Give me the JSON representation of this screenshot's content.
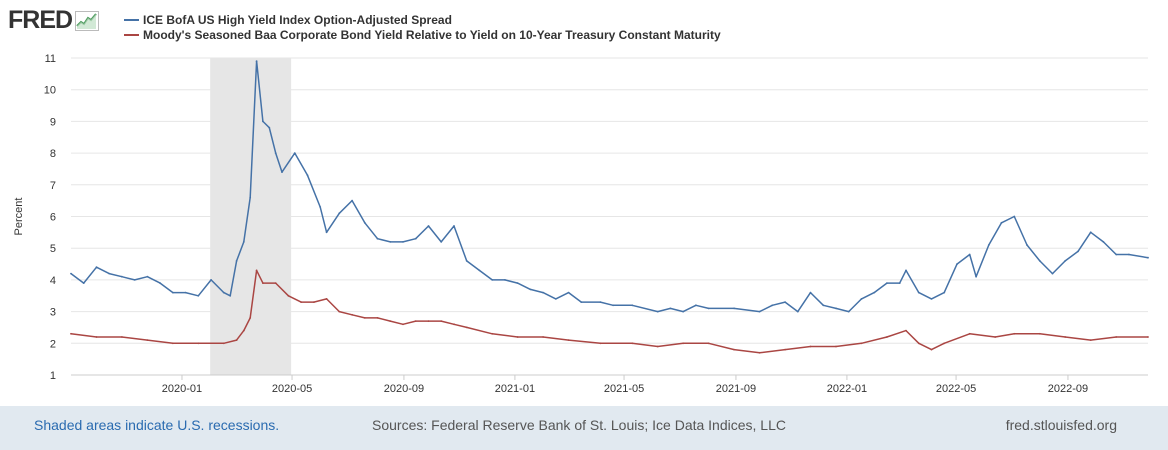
{
  "header": {
    "logo_text": "FRED",
    "logo_icon": "line-chart-icon"
  },
  "colors": {
    "series1": "#4572a7",
    "series2": "#aa4643",
    "recession": "#e6e6e6",
    "grid": "#e6e6e6",
    "link": "#2a6bb0"
  },
  "footer": {
    "recession_note": "Shaded areas indicate U.S. recessions.",
    "sources": "Sources: Federal Reserve Bank of St. Louis; Ice Data Indices, LLC",
    "site": "fred.stlouisfed.org"
  },
  "chart_data": {
    "type": "line",
    "ylabel": "Percent",
    "ylim": [
      1,
      11
    ],
    "yticks": [
      1,
      2,
      3,
      4,
      5,
      6,
      7,
      8,
      9,
      10,
      11
    ],
    "xlim": [
      "2019-09-01",
      "2022-11-28"
    ],
    "xticks": [
      "2020-01",
      "2020-05",
      "2020-09",
      "2021-01",
      "2021-05",
      "2021-09",
      "2022-01",
      "2022-05",
      "2022-09"
    ],
    "grid": "horizontal",
    "legend_position": "top-left",
    "recessions": [
      {
        "start": "2020-02-01",
        "end": "2020-04-30"
      }
    ],
    "series": [
      {
        "name": "ICE BofA US High Yield Index Option-Adjusted Spread",
        "points": [
          [
            "2019-09-01",
            4.2
          ],
          [
            "2019-09-15",
            3.9
          ],
          [
            "2019-09-29",
            4.4
          ],
          [
            "2019-10-13",
            4.2
          ],
          [
            "2019-10-27",
            4.1
          ],
          [
            "2019-11-10",
            4.0
          ],
          [
            "2019-11-24",
            4.1
          ],
          [
            "2019-12-08",
            3.9
          ],
          [
            "2019-12-22",
            3.6
          ],
          [
            "2020-01-05",
            3.6
          ],
          [
            "2020-01-19",
            3.5
          ],
          [
            "2020-02-02",
            4.0
          ],
          [
            "2020-02-16",
            3.6
          ],
          [
            "2020-02-23",
            3.5
          ],
          [
            "2020-03-01",
            4.6
          ],
          [
            "2020-03-09",
            5.2
          ],
          [
            "2020-03-16",
            6.6
          ],
          [
            "2020-03-23",
            10.9
          ],
          [
            "2020-03-30",
            9.0
          ],
          [
            "2020-04-06",
            8.8
          ],
          [
            "2020-04-13",
            8.0
          ],
          [
            "2020-04-20",
            7.4
          ],
          [
            "2020-05-04",
            8.0
          ],
          [
            "2020-05-18",
            7.3
          ],
          [
            "2020-06-01",
            6.3
          ],
          [
            "2020-06-08",
            5.5
          ],
          [
            "2020-06-22",
            6.1
          ],
          [
            "2020-07-06",
            6.5
          ],
          [
            "2020-07-20",
            5.8
          ],
          [
            "2020-08-03",
            5.3
          ],
          [
            "2020-08-17",
            5.2
          ],
          [
            "2020-08-31",
            5.2
          ],
          [
            "2020-09-14",
            5.3
          ],
          [
            "2020-09-28",
            5.7
          ],
          [
            "2020-10-12",
            5.2
          ],
          [
            "2020-10-26",
            5.7
          ],
          [
            "2020-11-09",
            4.6
          ],
          [
            "2020-11-23",
            4.3
          ],
          [
            "2020-12-07",
            4.0
          ],
          [
            "2020-12-21",
            4.0
          ],
          [
            "2021-01-04",
            3.9
          ],
          [
            "2021-01-18",
            3.7
          ],
          [
            "2021-02-01",
            3.6
          ],
          [
            "2021-02-15",
            3.4
          ],
          [
            "2021-03-01",
            3.6
          ],
          [
            "2021-03-15",
            3.3
          ],
          [
            "2021-04-05",
            3.3
          ],
          [
            "2021-04-19",
            3.2
          ],
          [
            "2021-05-10",
            3.2
          ],
          [
            "2021-06-07",
            3.0
          ],
          [
            "2021-06-21",
            3.1
          ],
          [
            "2021-07-05",
            3.0
          ],
          [
            "2021-07-19",
            3.2
          ],
          [
            "2021-08-02",
            3.1
          ],
          [
            "2021-08-30",
            3.1
          ],
          [
            "2021-09-27",
            3.0
          ],
          [
            "2021-10-11",
            3.2
          ],
          [
            "2021-10-25",
            3.3
          ],
          [
            "2021-11-08",
            3.0
          ],
          [
            "2021-11-22",
            3.6
          ],
          [
            "2021-12-06",
            3.2
          ],
          [
            "2021-12-20",
            3.1
          ],
          [
            "2022-01-03",
            3.0
          ],
          [
            "2022-01-17",
            3.4
          ],
          [
            "2022-01-31",
            3.6
          ],
          [
            "2022-02-14",
            3.9
          ],
          [
            "2022-02-28",
            3.9
          ],
          [
            "2022-03-07",
            4.3
          ],
          [
            "2022-03-21",
            3.6
          ],
          [
            "2022-04-04",
            3.4
          ],
          [
            "2022-04-18",
            3.6
          ],
          [
            "2022-05-02",
            4.5
          ],
          [
            "2022-05-16",
            4.8
          ],
          [
            "2022-05-23",
            4.1
          ],
          [
            "2022-06-06",
            5.1
          ],
          [
            "2022-06-20",
            5.8
          ],
          [
            "2022-07-04",
            6.0
          ],
          [
            "2022-07-18",
            5.1
          ],
          [
            "2022-08-01",
            4.6
          ],
          [
            "2022-08-15",
            4.2
          ],
          [
            "2022-08-29",
            4.6
          ],
          [
            "2022-09-12",
            4.9
          ],
          [
            "2022-09-26",
            5.5
          ],
          [
            "2022-10-10",
            5.2
          ],
          [
            "2022-10-24",
            4.8
          ],
          [
            "2022-11-07",
            4.8
          ],
          [
            "2022-11-28",
            4.7
          ]
        ]
      },
      {
        "name": "Moody's Seasoned Baa Corporate Bond Yield Relative to Yield on 10-Year Treasury Constant Maturity",
        "points": [
          [
            "2019-09-01",
            2.3
          ],
          [
            "2019-09-29",
            2.2
          ],
          [
            "2019-10-27",
            2.2
          ],
          [
            "2019-11-24",
            2.1
          ],
          [
            "2019-12-22",
            2.0
          ],
          [
            "2020-01-19",
            2.0
          ],
          [
            "2020-02-16",
            2.0
          ],
          [
            "2020-03-01",
            2.1
          ],
          [
            "2020-03-09",
            2.4
          ],
          [
            "2020-03-16",
            2.8
          ],
          [
            "2020-03-23",
            4.3
          ],
          [
            "2020-03-30",
            3.9
          ],
          [
            "2020-04-13",
            3.9
          ],
          [
            "2020-04-27",
            3.5
          ],
          [
            "2020-05-11",
            3.3
          ],
          [
            "2020-05-25",
            3.3
          ],
          [
            "2020-06-08",
            3.4
          ],
          [
            "2020-06-22",
            3.0
          ],
          [
            "2020-07-06",
            2.9
          ],
          [
            "2020-07-20",
            2.8
          ],
          [
            "2020-08-03",
            2.8
          ],
          [
            "2020-08-17",
            2.7
          ],
          [
            "2020-08-31",
            2.6
          ],
          [
            "2020-09-14",
            2.7
          ],
          [
            "2020-09-28",
            2.7
          ],
          [
            "2020-10-12",
            2.7
          ],
          [
            "2020-10-26",
            2.6
          ],
          [
            "2020-11-09",
            2.5
          ],
          [
            "2020-12-07",
            2.3
          ],
          [
            "2021-01-04",
            2.2
          ],
          [
            "2021-02-01",
            2.2
          ],
          [
            "2021-03-01",
            2.1
          ],
          [
            "2021-04-05",
            2.0
          ],
          [
            "2021-05-10",
            2.0
          ],
          [
            "2021-06-07",
            1.9
          ],
          [
            "2021-07-05",
            2.0
          ],
          [
            "2021-08-02",
            2.0
          ],
          [
            "2021-08-30",
            1.8
          ],
          [
            "2021-09-27",
            1.7
          ],
          [
            "2021-10-25",
            1.8
          ],
          [
            "2021-11-22",
            1.9
          ],
          [
            "2021-12-20",
            1.9
          ],
          [
            "2022-01-17",
            2.0
          ],
          [
            "2022-02-14",
            2.2
          ],
          [
            "2022-03-07",
            2.4
          ],
          [
            "2022-03-21",
            2.0
          ],
          [
            "2022-04-04",
            1.8
          ],
          [
            "2022-04-18",
            2.0
          ],
          [
            "2022-05-16",
            2.3
          ],
          [
            "2022-06-13",
            2.2
          ],
          [
            "2022-07-04",
            2.3
          ],
          [
            "2022-08-01",
            2.3
          ],
          [
            "2022-08-29",
            2.2
          ],
          [
            "2022-09-26",
            2.1
          ],
          [
            "2022-10-24",
            2.2
          ],
          [
            "2022-11-28",
            2.2
          ]
        ]
      }
    ]
  }
}
